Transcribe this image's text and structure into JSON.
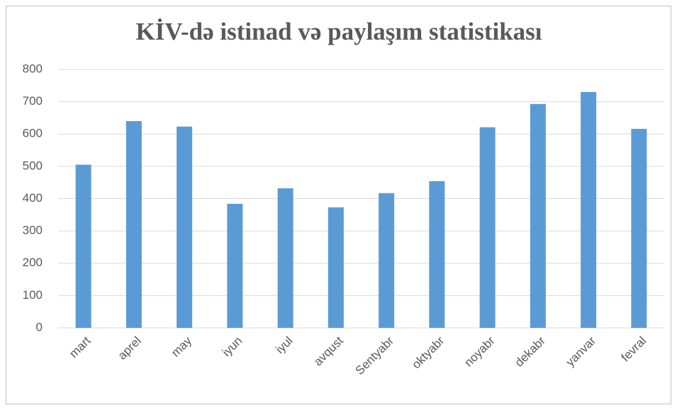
{
  "chart_data": {
    "type": "bar",
    "title": "KİV-də istinad və paylaşım statistikası",
    "categories": [
      "mart",
      "aprel",
      "may",
      "iyun",
      "iyul",
      "avqust",
      "Sentyabr",
      "oktyabr",
      "noyabr",
      "dekabr",
      "yanvar",
      "fevral"
    ],
    "values": [
      505,
      640,
      623,
      384,
      432,
      373,
      417,
      454,
      621,
      693,
      730,
      616
    ],
    "color": "#5b9bd5",
    "ylim": [
      0,
      800
    ],
    "yticks": [
      0,
      100,
      200,
      300,
      400,
      500,
      600,
      700,
      800
    ],
    "grid": true
  }
}
